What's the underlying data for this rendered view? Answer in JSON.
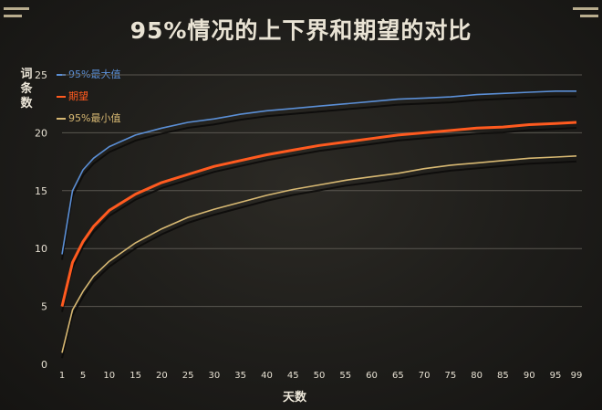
{
  "title": "95%情况的上下界和期望的对比",
  "chart_data": {
    "type": "line",
    "title": "95%情况的上下界和期望的对比",
    "xlabel": "天数",
    "ylabel": "词条数",
    "xlim": [
      1,
      99
    ],
    "ylim": [
      0,
      25
    ],
    "x_ticks": [
      "1",
      "5",
      "10",
      "15",
      "20",
      "25",
      "30",
      "35",
      "40",
      "45",
      "50",
      "55",
      "60",
      "65",
      "70",
      "75",
      "80",
      "85",
      "90",
      "95",
      "99"
    ],
    "y_ticks": [
      "0",
      "5",
      "10",
      "15",
      "20",
      "25"
    ],
    "grid": true,
    "legend_position": "top-left",
    "x": [
      1,
      3,
      5,
      7,
      10,
      15,
      20,
      25,
      30,
      35,
      40,
      45,
      50,
      55,
      60,
      65,
      70,
      75,
      80,
      85,
      90,
      95,
      99
    ],
    "series": [
      {
        "name": "95%最大值",
        "color": "#5b8fd6",
        "values": [
          9.5,
          15.0,
          16.8,
          17.8,
          18.8,
          19.8,
          20.4,
          20.9,
          21.2,
          21.6,
          21.9,
          22.1,
          22.3,
          22.5,
          22.7,
          22.9,
          23.0,
          23.1,
          23.3,
          23.4,
          23.5,
          23.6,
          23.6
        ]
      },
      {
        "name": "期望",
        "color": "#ff5a1f",
        "values": [
          5.0,
          8.8,
          10.6,
          11.9,
          13.3,
          14.7,
          15.7,
          16.4,
          17.1,
          17.6,
          18.1,
          18.5,
          18.9,
          19.2,
          19.5,
          19.8,
          20.0,
          20.2,
          20.4,
          20.5,
          20.7,
          20.8,
          20.9
        ]
      },
      {
        "name": "95%最小值",
        "color": "#d8b973",
        "values": [
          1.0,
          4.7,
          6.3,
          7.6,
          8.9,
          10.5,
          11.7,
          12.7,
          13.4,
          14.0,
          14.6,
          15.1,
          15.5,
          15.9,
          16.2,
          16.5,
          16.9,
          17.2,
          17.4,
          17.6,
          17.8,
          17.9,
          18.0
        ]
      }
    ]
  }
}
